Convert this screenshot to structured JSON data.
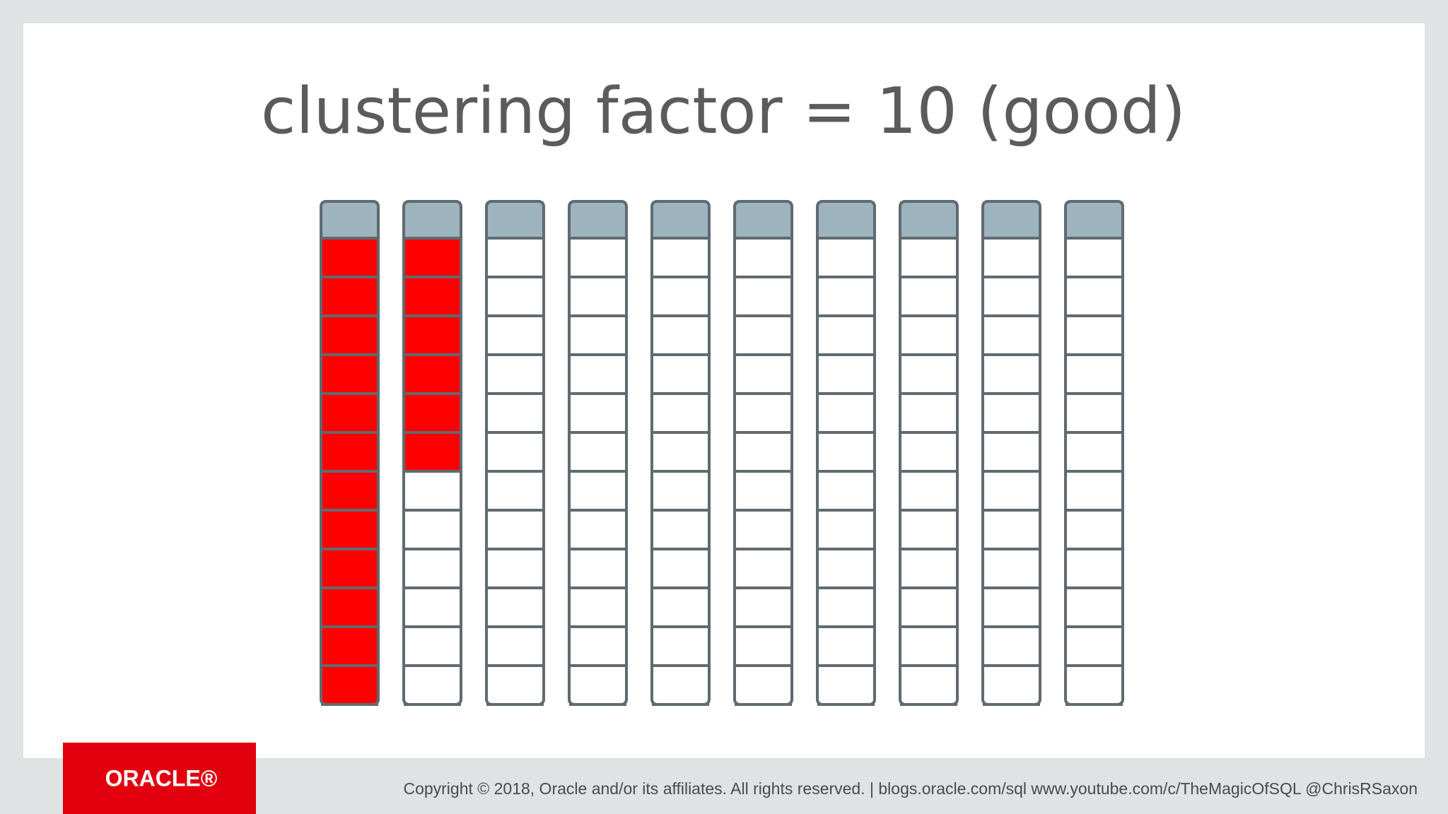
{
  "title": "clustering factor = 10 (good)",
  "blocks": {
    "rows_per_block": 12,
    "filled_rows": [
      12,
      6,
      0,
      0,
      0,
      0,
      0,
      0,
      0,
      0
    ]
  },
  "footer": {
    "logo": "ORACLE®",
    "copyright": "Copyright © 2018, Oracle and/or its affiliates. All rights reserved.  |  blogs.oracle.com/sql www.youtube.com/c/TheMagicOfSQL @ChrisRSaxon"
  }
}
